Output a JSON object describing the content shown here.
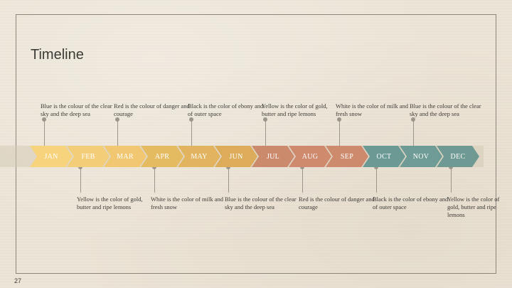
{
  "slide": {
    "title": "Timeline",
    "page_number": "27"
  },
  "colors": {
    "yellow_light": "#f6d37c",
    "yellow_mid": "#e8c066",
    "yellow_dark": "#d9ad58",
    "terracotta": "#cc8a6d",
    "teal": "#6b9a95"
  },
  "months": [
    {
      "label": "JAN",
      "color": "#f6d37c"
    },
    {
      "label": "FEB",
      "color": "#f4cd78"
    },
    {
      "label": "MAR",
      "color": "#f1c772"
    },
    {
      "label": "APR",
      "color": "#e5bb62"
    },
    {
      "label": "MAY",
      "color": "#e2b45f"
    },
    {
      "label": "JUN",
      "color": "#dcac5a"
    },
    {
      "label": "JUL",
      "color": "#cc8a6d"
    },
    {
      "label": "AUG",
      "color": "#cf8a6d"
    },
    {
      "label": "SEP",
      "color": "#cd8a6d"
    },
    {
      "label": "OCT",
      "color": "#6b9a95"
    },
    {
      "label": "NOV",
      "color": "#6e9b95"
    },
    {
      "label": "DEC",
      "color": "#6f9a94"
    }
  ],
  "top_notes": [
    "Blue is the colour of the clear sky and the deep sea",
    "Red is the colour of danger and courage",
    "Black is the color of ebony and of outer space",
    "Yellow is the color of gold, butter and ripe lemons",
    "White is the color of milk and fresh snow",
    "Blue is the colour of the clear sky and the deep sea"
  ],
  "bottom_notes": [
    "Yellow is the color of gold, butter and ripe lemons",
    "White is the color of milk and fresh snow",
    "Blue is the colour of the clear sky and the deep sea",
    "Red is the colour of danger and courage",
    "Black is the color of ebony and of outer space",
    "Yellow is the color of gold, butter and ripe lemons"
  ]
}
